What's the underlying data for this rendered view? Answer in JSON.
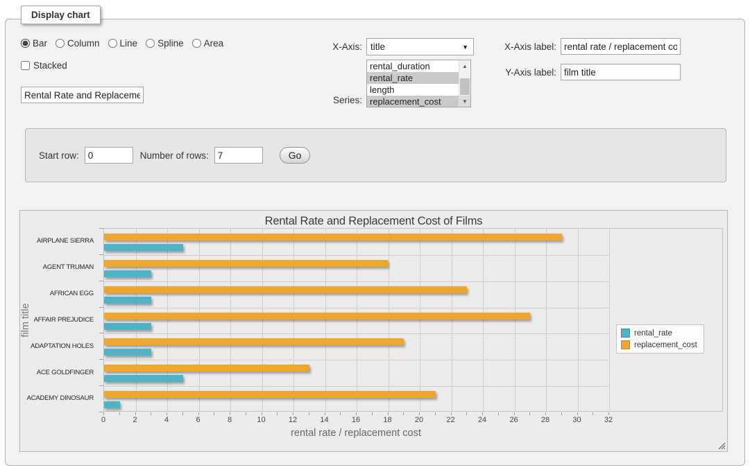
{
  "fieldset": {
    "legend": "Display chart"
  },
  "controls": {
    "chart_type": {
      "options": [
        {
          "label": "Bar",
          "selected": true
        },
        {
          "label": "Column",
          "selected": false
        },
        {
          "label": "Line",
          "selected": false
        },
        {
          "label": "Spline",
          "selected": false
        },
        {
          "label": "Area",
          "selected": false
        }
      ]
    },
    "stacked": {
      "label": "Stacked",
      "checked": false
    },
    "chart_title_input": {
      "value": "Rental Rate and Replacement Cost of Films"
    },
    "x_axis_select": {
      "label": "X-Axis:",
      "value": "title"
    },
    "series_list": {
      "label": "Series:",
      "options": [
        {
          "label": "rental_duration",
          "selected": false
        },
        {
          "label": "rental_rate",
          "selected": true
        },
        {
          "label": "length",
          "selected": false
        },
        {
          "label": "replacement_cost",
          "selected": true
        }
      ]
    },
    "x_axis_label_input": {
      "label": "X-Axis label:",
      "value": "rental rate / replacement cost"
    },
    "y_axis_label_input": {
      "label": "Y-Axis label:",
      "value": "film title"
    },
    "row_controls": {
      "start_row_label": "Start row:",
      "start_row_value": "0",
      "num_rows_label": "Number of rows:",
      "num_rows_value": "7",
      "go_label": "Go"
    }
  },
  "chart_data": {
    "type": "bar",
    "orientation": "horizontal",
    "title": "Rental Rate and Replacement Cost of Films",
    "categories": [
      "AIRPLANE SIERRA",
      "AGENT TRUMAN",
      "AFRICAN EGG",
      "AFFAIR PREJUDICE",
      "ADAPTATION HOLES",
      "ACE GOLDFINGER",
      "ACADEMY DINOSAUR"
    ],
    "series": [
      {
        "name": "rental_rate",
        "color": "#4FB3C5",
        "values": [
          4.99,
          2.99,
          2.99,
          2.99,
          2.99,
          4.99,
          0.99
        ]
      },
      {
        "name": "replacement_cost",
        "color": "#EDA62F",
        "values": [
          28.99,
          17.99,
          22.99,
          26.99,
          18.99,
          12.99,
          20.99
        ]
      }
    ],
    "draw_order_top_to_bottom": [
      "replacement_cost",
      "rental_rate"
    ],
    "xlabel": "rental rate / replacement cost",
    "ylabel": "film title",
    "xlim": [
      0,
      32
    ],
    "xtick_step": 2,
    "minor_tick_step": 1,
    "grid": true,
    "legend_position": "right"
  }
}
